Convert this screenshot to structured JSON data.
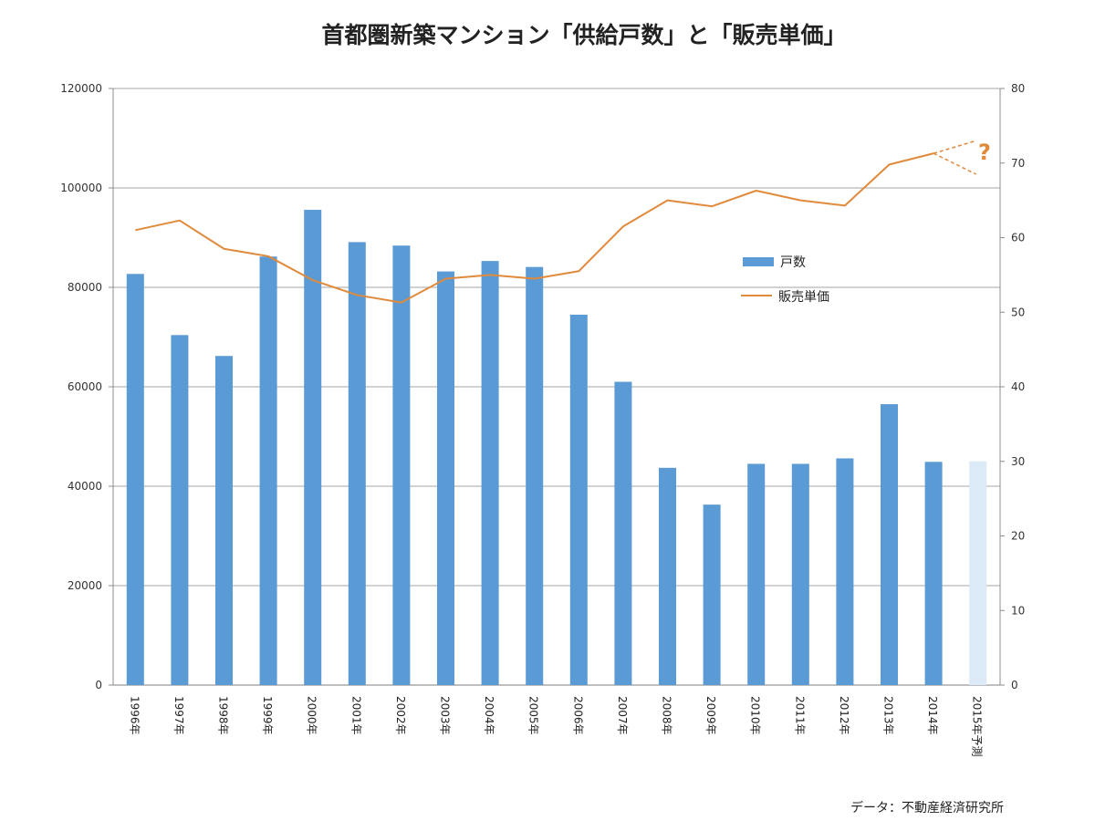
{
  "chart_data": {
    "type": "bar",
    "title": "首都圏新築マンション「供給戸数」と「販売単価」",
    "categories": [
      "1996年",
      "1997年",
      "1998年",
      "1999年",
      "2000年",
      "2001年",
      "2002年",
      "2003年",
      "2004年",
      "2005年",
      "2006年",
      "2007年",
      "2008年",
      "2009年",
      "2010年",
      "2011年",
      "2012年",
      "2013年",
      "2014年",
      "2015年予測"
    ],
    "series": [
      {
        "name": "戸数",
        "kind": "bar",
        "axis": "left",
        "color": "#5b9bd5",
        "values": [
          82700,
          70400,
          66200,
          86200,
          95600,
          89100,
          88400,
          83200,
          85300,
          84100,
          74500,
          61000,
          43700,
          36300,
          44500,
          44500,
          45600,
          56500,
          44900,
          45000
        ],
        "forecast_index": 19,
        "forecast_color": "#dce9f6"
      },
      {
        "name": "販売単価",
        "kind": "line",
        "axis": "right",
        "color": "#e08a3c",
        "values": [
          61.0,
          62.3,
          58.5,
          57.5,
          54.3,
          52.3,
          51.3,
          54.5,
          55.0,
          54.5,
          55.5,
          61.5,
          65.0,
          64.2,
          66.3,
          65.0,
          64.3,
          69.8,
          71.3,
          null
        ]
      }
    ],
    "forecast_range": {
      "from_index": 18,
      "from_value": 71.3,
      "upper": 73.0,
      "lower": 68.5
    },
    "left_axis": {
      "min": 0,
      "max": 120000,
      "ticks": [
        0,
        20000,
        40000,
        60000,
        80000,
        100000,
        120000
      ]
    },
    "right_axis": {
      "min": 0,
      "max": 80,
      "ticks": [
        0,
        10,
        20,
        30,
        40,
        50,
        60,
        70,
        80
      ]
    },
    "grid": true,
    "legend_position": "top-right",
    "annotation": "?",
    "source": "データ：不動産経済研究所"
  }
}
